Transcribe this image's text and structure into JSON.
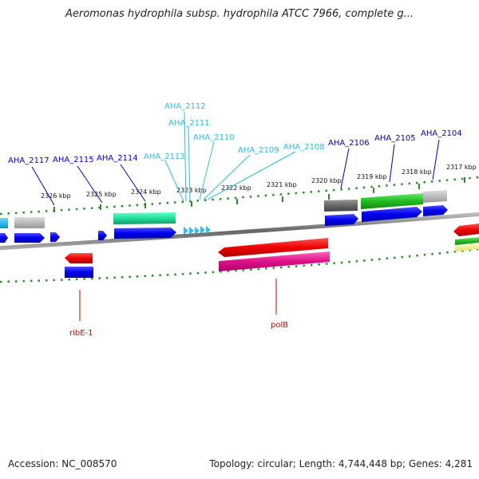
{
  "header": {
    "title": "Aeromonas hydrophila subsp. hydrophila ATCC 7966, complete g..."
  },
  "footer": {
    "accession": "Accession: NC_008570",
    "topology": "Topology: circular; Length: 4,744,448 bp; Genes: 4,281"
  },
  "colors": {
    "background": "#ffffff",
    "backbone": "#7a7a7a",
    "tick": "#2e8b2e",
    "blue_label": "#0000cc",
    "cyan_label": "#33bbdd",
    "red_label": "#cc0000"
  },
  "scale_labels": [
    "2326 kbp",
    "2325 kbp",
    "2324 kbp",
    "2323 kbp",
    "2322 kbp",
    "2321 kbp",
    "2320 kbp",
    "2319 kbp",
    "2318 kbp",
    "2317 kbp"
  ],
  "gene_labels": {
    "blue": [
      "AHA_2117",
      "AHA_2115",
      "AHA_2114",
      "AHA_2106",
      "AHA_2105",
      "AHA_2104"
    ],
    "cyan": [
      "AHA_2112",
      "AHA_2111",
      "AHA_2110",
      "AHA_2113",
      "AHA_2109",
      "AHA_2108"
    ],
    "red": [
      "ribE-1",
      "polB"
    ]
  }
}
